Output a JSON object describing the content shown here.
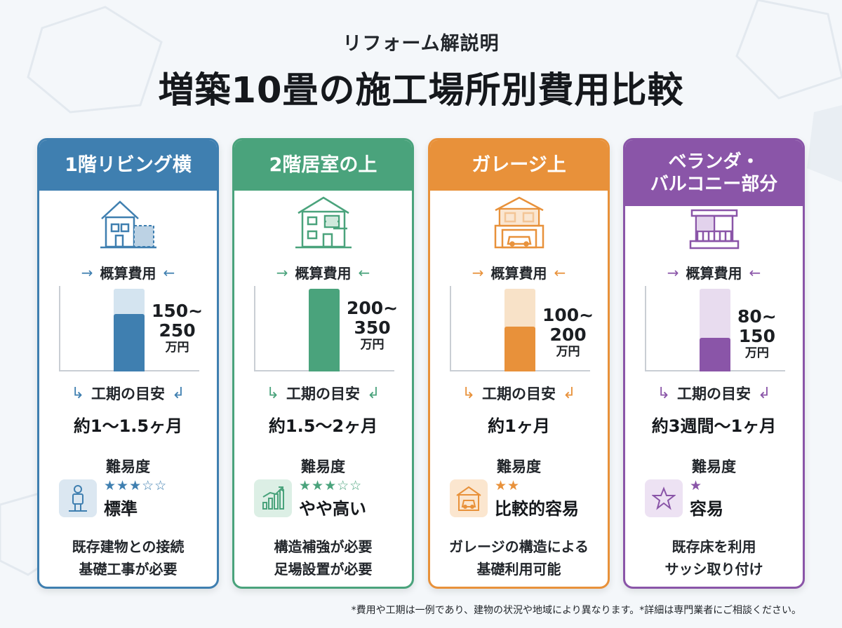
{
  "header": {
    "subtitle": "リフォーム解説明",
    "title": "増築10畳の施工場所別費用比較"
  },
  "labels": {
    "cost": "概算費用",
    "period": "工期の目安",
    "difficulty": "難易度"
  },
  "cards": [
    {
      "heading": "1階リビング横",
      "accent": "#3f7fb0",
      "light": "#d4e4f0",
      "icon": "house-extension-icon",
      "cost_min": 150,
      "cost_max": 250,
      "cost_range": "150~\n250",
      "unit": "万円",
      "period": "約1〜1.5ヶ月",
      "stars": "★★★☆☆",
      "star_count": 3,
      "difficulty": "標準",
      "difficulty_icon": "person-icon",
      "note1": "既存建物との接続",
      "note2": "基礎工事が必要"
    },
    {
      "heading": "2階居室の上",
      "accent": "#4aa37c",
      "light": "#d6eee2",
      "icon": "two-story-house-icon",
      "cost_min": 200,
      "cost_max": 350,
      "cost_range": "200~\n350",
      "unit": "万円",
      "period": "約1.5〜2ヶ月",
      "stars": "★★★☆☆",
      "star_count": 3,
      "difficulty": "やや高い",
      "difficulty_icon": "bar-chart-icon",
      "note1": "構造補強が必要",
      "note2": "足場設置が必要"
    },
    {
      "heading": "ガレージ上",
      "accent": "#e8913a",
      "light": "#f8e2c8",
      "icon": "garage-house-icon",
      "cost_min": 100,
      "cost_max": 200,
      "cost_range": "100~\n200",
      "unit": "万円",
      "period": "約1ヶ月",
      "stars": "★★",
      "star_count": 2,
      "difficulty": "比較的容易",
      "difficulty_icon": "garage-car-icon",
      "note1": "ガレージの構造による",
      "note2": "基礎利用可能"
    },
    {
      "heading": "ベランダ・\nバルコニー部分",
      "accent": "#8a55a8",
      "light": "#e8dcef",
      "icon": "balcony-icon",
      "cost_min": 80,
      "cost_max": 150,
      "cost_range": "80~\n150",
      "unit": "万円",
      "period": "約3週間〜1ヶ月",
      "stars": "★",
      "star_count": 1,
      "difficulty": "容易",
      "difficulty_icon": "star-outline-icon",
      "note1": "既存床を利用",
      "note2": "サッシ取り付け"
    }
  ],
  "footnote": "*費用や工期は一例であり、建物の状況や地域により異なります。*詳細は専門業者にご相談ください。"
}
